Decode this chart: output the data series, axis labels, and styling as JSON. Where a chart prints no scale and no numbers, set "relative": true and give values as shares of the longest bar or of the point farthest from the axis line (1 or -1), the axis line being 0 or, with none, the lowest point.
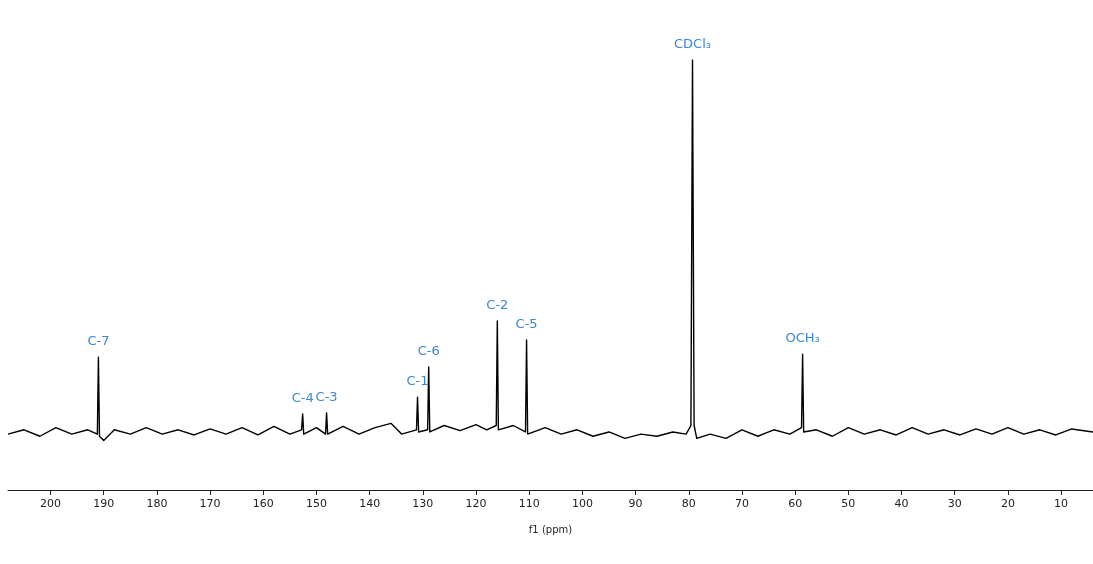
{
  "chart_data": {
    "type": "line",
    "relative": true,
    "xlabel": "f1 (ppm)",
    "xlim": [
      208,
      4
    ],
    "xticks": [
      200,
      190,
      180,
      170,
      160,
      150,
      140,
      130,
      120,
      110,
      100,
      90,
      80,
      70,
      60,
      50,
      40,
      30,
      20,
      10
    ],
    "grid": false,
    "marker": "none",
    "line_style": "solid",
    "series": [
      {
        "color": "#000000",
        "x": [
          208,
          205,
          202,
          199,
          196,
          193,
          191.2,
          191.0,
          190.8,
          190,
          188,
          185,
          182,
          179,
          176,
          173,
          170,
          167,
          164,
          161,
          158,
          155,
          152.8,
          152.6,
          152.4,
          150,
          148.3,
          148.1,
          147.9,
          145,
          142,
          139,
          136,
          134,
          131.2,
          131.0,
          130.8,
          129.1,
          128.9,
          128.7,
          126,
          123,
          120,
          118,
          116.2,
          116.0,
          115.8,
          113,
          110.7,
          110.5,
          110.3,
          107,
          104,
          101,
          98,
          95,
          92,
          89,
          86,
          83,
          80.5,
          79.6,
          79.3,
          79.0,
          78.5,
          76,
          73,
          70,
          67,
          64,
          61,
          58.8,
          58.6,
          58.4,
          56,
          53,
          50,
          47,
          44,
          41,
          38,
          35,
          32,
          29,
          26,
          23,
          20,
          17,
          14,
          11,
          8,
          4
        ],
        "values": [
          0.13,
          0.14,
          0.125,
          0.145,
          0.13,
          0.14,
          0.13,
          0.309,
          0.125,
          0.115,
          0.14,
          0.13,
          0.145,
          0.13,
          0.14,
          0.128,
          0.142,
          0.13,
          0.145,
          0.128,
          0.148,
          0.13,
          0.14,
          0.177,
          0.13,
          0.145,
          0.13,
          0.179,
          0.13,
          0.148,
          0.13,
          0.145,
          0.155,
          0.13,
          0.14,
          0.216,
          0.135,
          0.14,
          0.286,
          0.135,
          0.15,
          0.138,
          0.152,
          0.14,
          0.15,
          0.393,
          0.14,
          0.15,
          0.135,
          0.349,
          0.13,
          0.145,
          0.13,
          0.14,
          0.125,
          0.135,
          0.12,
          0.13,
          0.125,
          0.135,
          0.13,
          0.15,
          1.0,
          0.15,
          0.12,
          0.13,
          0.12,
          0.14,
          0.125,
          0.14,
          0.13,
          0.145,
          0.316,
          0.135,
          0.14,
          0.125,
          0.145,
          0.13,
          0.14,
          0.128,
          0.145,
          0.13,
          0.14,
          0.128,
          0.142,
          0.13,
          0.145,
          0.13,
          0.14,
          0.128,
          0.142,
          0.135
        ]
      }
    ],
    "annotations": [
      {
        "text": "C-7",
        "x": 191.0,
        "y": 0.309
      },
      {
        "text": "C-4",
        "x": 152.6,
        "y": 0.177
      },
      {
        "text": "C-3",
        "x": 148.1,
        "y": 0.179
      },
      {
        "text": "C-1",
        "x": 131.0,
        "y": 0.216
      },
      {
        "text": "C-6",
        "x": 128.9,
        "y": 0.286
      },
      {
        "text": "C-2",
        "x": 116.0,
        "y": 0.393
      },
      {
        "text": "C-5",
        "x": 110.5,
        "y": 0.349
      },
      {
        "text": "CDCl₃",
        "x": 79.3,
        "y": 1.0
      },
      {
        "text": "OCH₃",
        "x": 58.6,
        "y": 0.316
      }
    ]
  }
}
